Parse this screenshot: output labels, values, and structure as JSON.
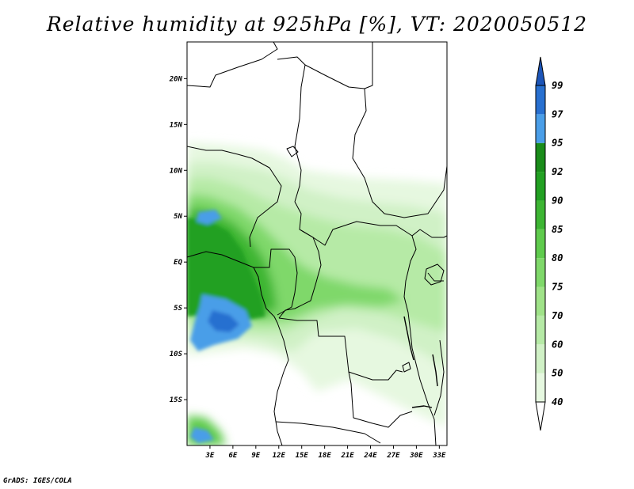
{
  "title": "Relative humidity at 925hPa [%], VT: 2020050512",
  "credit": "GrADS: IGES/COLA",
  "map": {
    "region": "Central Africa",
    "lon_range": [
      0,
      34
    ],
    "lat_range": [
      -20,
      24
    ],
    "lon_ticks": [
      {
        "value": 3,
        "label": "3E"
      },
      {
        "value": 6,
        "label": "6E"
      },
      {
        "value": 9,
        "label": "9E"
      },
      {
        "value": 12,
        "label": "12E"
      },
      {
        "value": 15,
        "label": "15E"
      },
      {
        "value": 18,
        "label": "18E"
      },
      {
        "value": 21,
        "label": "21E"
      },
      {
        "value": 24,
        "label": "24E"
      },
      {
        "value": 27,
        "label": "27E"
      },
      {
        "value": 30,
        "label": "30E"
      },
      {
        "value": 33,
        "label": "33E"
      }
    ],
    "lat_ticks": [
      {
        "value": 20,
        "label": "20N"
      },
      {
        "value": 15,
        "label": "15N"
      },
      {
        "value": 10,
        "label": "10N"
      },
      {
        "value": 5,
        "label": "5N"
      },
      {
        "value": 0,
        "label": "EQ"
      },
      {
        "value": -5,
        "label": "5S"
      },
      {
        "value": -10,
        "label": "10S"
      },
      {
        "value": -15,
        "label": "15S"
      }
    ]
  },
  "colorbar": {
    "levels": [
      {
        "label": "40",
        "color": "#ffffff"
      },
      {
        "label": "50",
        "color": "#e6f8e0"
      },
      {
        "label": "60",
        "color": "#d0f1c6"
      },
      {
        "label": "70",
        "color": "#b6eaa6"
      },
      {
        "label": "75",
        "color": "#9fe288"
      },
      {
        "label": "80",
        "color": "#7fd86a"
      },
      {
        "label": "85",
        "color": "#5fcb4d"
      },
      {
        "label": "90",
        "color": "#3db533"
      },
      {
        "label": "92",
        "color": "#22a022"
      },
      {
        "label": "95",
        "color": "#1a8c1a"
      },
      {
        "label": "97",
        "color": "#4a9ee8"
      },
      {
        "label": "99",
        "color": "#2870d0"
      }
    ],
    "top_color": "#1c55b8",
    "bottom_color": "#ffffff"
  }
}
